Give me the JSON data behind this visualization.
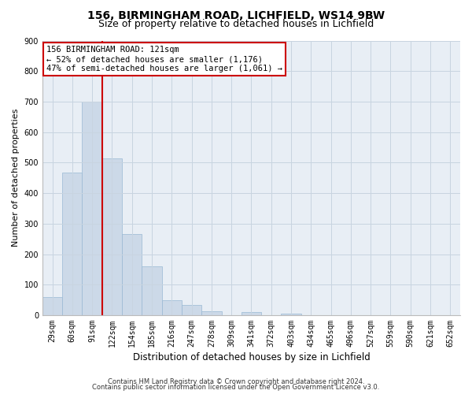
{
  "title": "156, BIRMINGHAM ROAD, LICHFIELD, WS14 9BW",
  "subtitle": "Size of property relative to detached houses in Lichfield",
  "xlabel": "Distribution of detached houses by size in Lichfield",
  "ylabel": "Number of detached properties",
  "bin_labels": [
    "29sqm",
    "60sqm",
    "91sqm",
    "122sqm",
    "154sqm",
    "185sqm",
    "216sqm",
    "247sqm",
    "278sqm",
    "309sqm",
    "341sqm",
    "372sqm",
    "403sqm",
    "434sqm",
    "465sqm",
    "496sqm",
    "527sqm",
    "559sqm",
    "590sqm",
    "621sqm",
    "652sqm"
  ],
  "bar_heights": [
    60,
    467,
    700,
    515,
    265,
    160,
    48,
    34,
    13,
    0,
    10,
    0,
    5,
    0,
    0,
    0,
    0,
    0,
    0,
    0,
    0
  ],
  "bar_color": "#ccd9e8",
  "bar_edge_color": "#99b8d4",
  "vline_color": "#cc0000",
  "ylim": [
    0,
    900
  ],
  "yticks": [
    0,
    100,
    200,
    300,
    400,
    500,
    600,
    700,
    800,
    900
  ],
  "annotation_title": "156 BIRMINGHAM ROAD: 121sqm",
  "annotation_line1": "← 52% of detached houses are smaller (1,176)",
  "annotation_line2": "47% of semi-detached houses are larger (1,061) →",
  "annotation_box_color": "#ffffff",
  "annotation_box_edge": "#cc0000",
  "footnote1": "Contains HM Land Registry data © Crown copyright and database right 2024.",
  "footnote2": "Contains public sector information licensed under the Open Government Licence v3.0.",
  "bg_color": "#ffffff",
  "plot_bg_color": "#e8eef5",
  "grid_color": "#c8d4e0",
  "title_fontsize": 10,
  "subtitle_fontsize": 9,
  "ylabel_fontsize": 8,
  "xlabel_fontsize": 8.5,
  "tick_fontsize": 7,
  "annot_fontsize": 7.5,
  "footnote_fontsize": 6
}
